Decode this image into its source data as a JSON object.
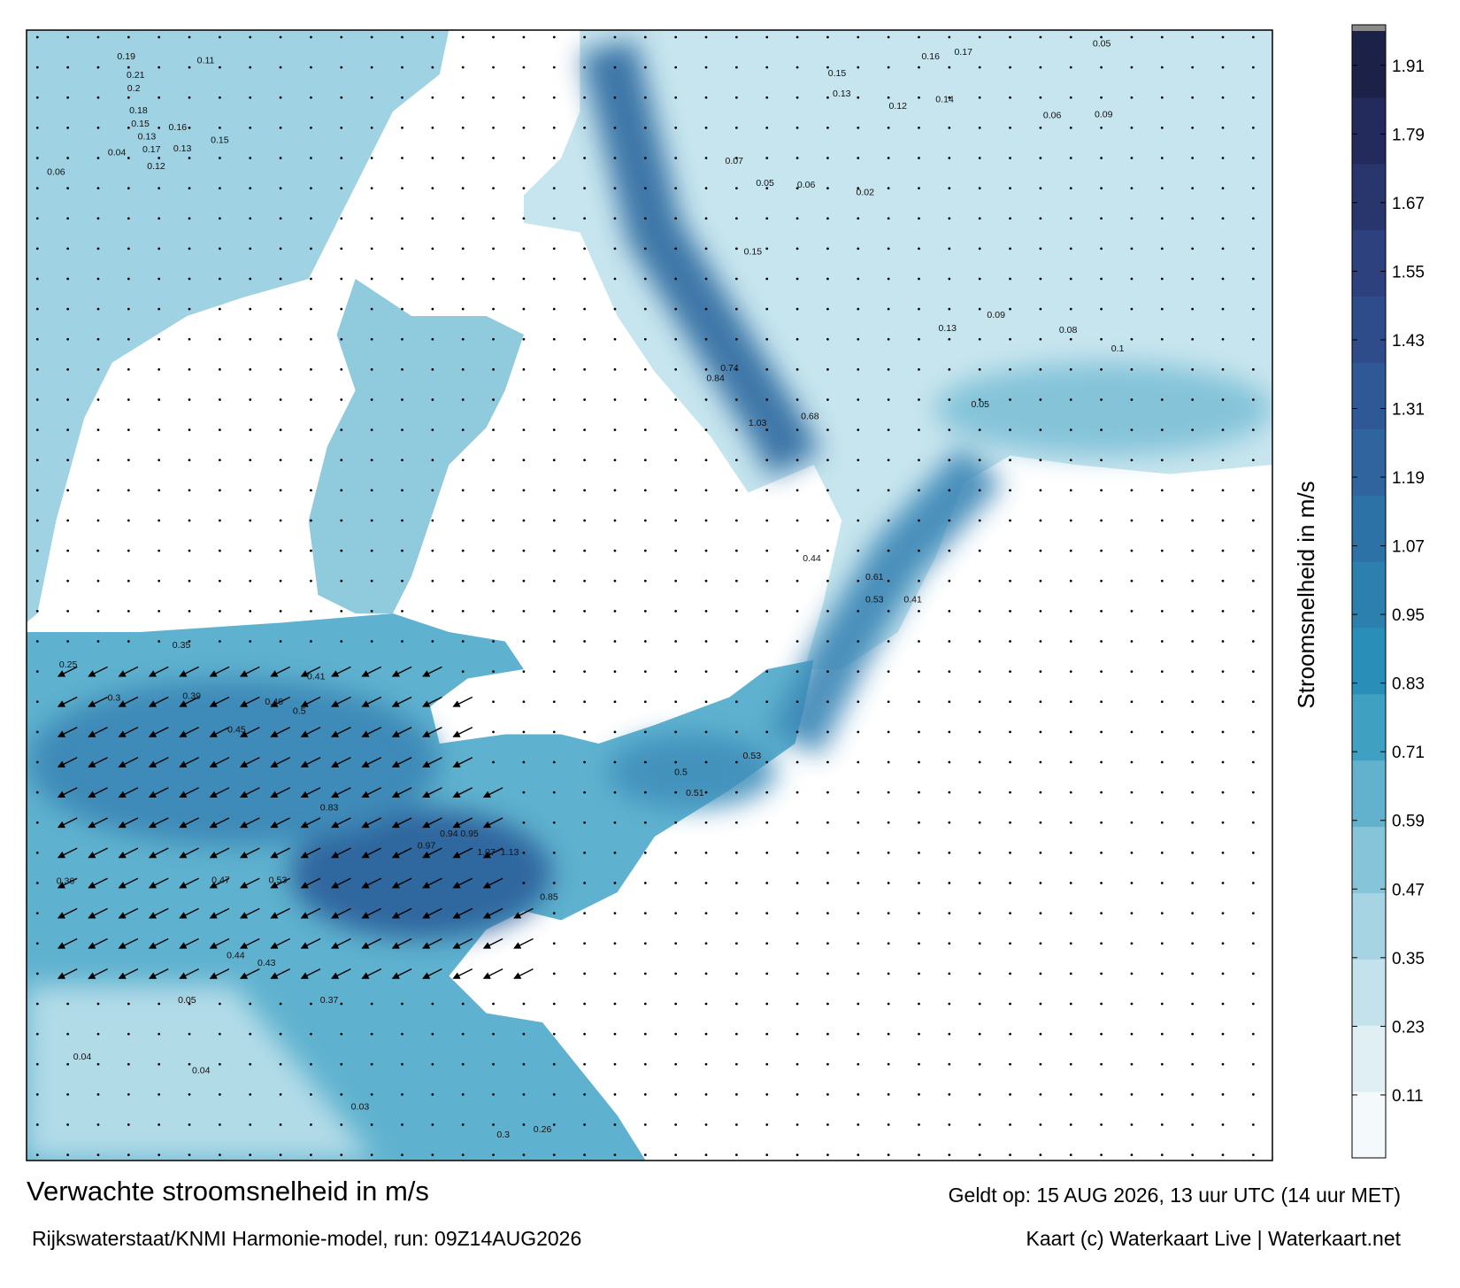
{
  "map": {
    "title": "Verwachte stroomsnelheid in m/s",
    "subtitle": "Rijkswaterstaat/KNMI Harmonie-model, run: 09Z14AUG2026",
    "valid": "Geldt op: 15 AUG 2026, 13 uur UTC (14 uur MET)",
    "credit": "Kaart (c) Waterkaart Live | Waterkaart.net",
    "speed_labels": [
      0.19,
      0.11,
      0.21,
      0.2,
      0.18,
      0.15,
      0.13,
      0.17,
      0.12,
      0.04,
      0.06,
      0.16,
      0.15,
      0.13,
      0.05,
      0.16,
      0.17,
      0.15,
      0.13,
      0.12,
      0.14,
      0.06,
      0.09,
      0.07,
      0.05,
      0.06,
      0.02,
      0.15,
      0.13,
      0.08,
      0.09,
      0.1,
      0.05,
      0.74,
      0.84,
      1.03,
      0.68,
      0.83,
      0.94,
      0.95,
      0.97,
      1.07,
      1.13,
      0.85,
      0.47,
      0.53,
      0.39,
      0.46,
      0.5,
      0.45,
      0.41,
      0.35,
      0.25,
      0.3,
      0.36,
      0.44,
      0.43,
      0.37,
      0.05,
      0.04,
      0.04,
      0.03,
      0.3,
      0.26,
      0.51,
      0.5,
      0.53,
      0.44,
      0.61,
      0.53,
      0.41
    ]
  },
  "colorbar": {
    "label": "Stroomsnelheid in m/s",
    "lim": [
      0,
      1.97
    ],
    "ticks": [
      0.11,
      0.23,
      0.35,
      0.47,
      0.59,
      0.71,
      0.83,
      0.95,
      1.07,
      1.19,
      1.31,
      1.43,
      1.55,
      1.67,
      1.79,
      1.91
    ],
    "colors": [
      "#f4f9fb",
      "#e0eff4",
      "#c4e2ec",
      "#a6d4e3",
      "#86c4d9",
      "#62b2cd",
      "#3fa0c2",
      "#2a8fb8",
      "#2b80ae",
      "#2d72a6",
      "#2f649e",
      "#2f5896",
      "#2f4c8a",
      "#2c417d",
      "#28366d",
      "#222b5c",
      "#1b2147"
    ]
  }
}
